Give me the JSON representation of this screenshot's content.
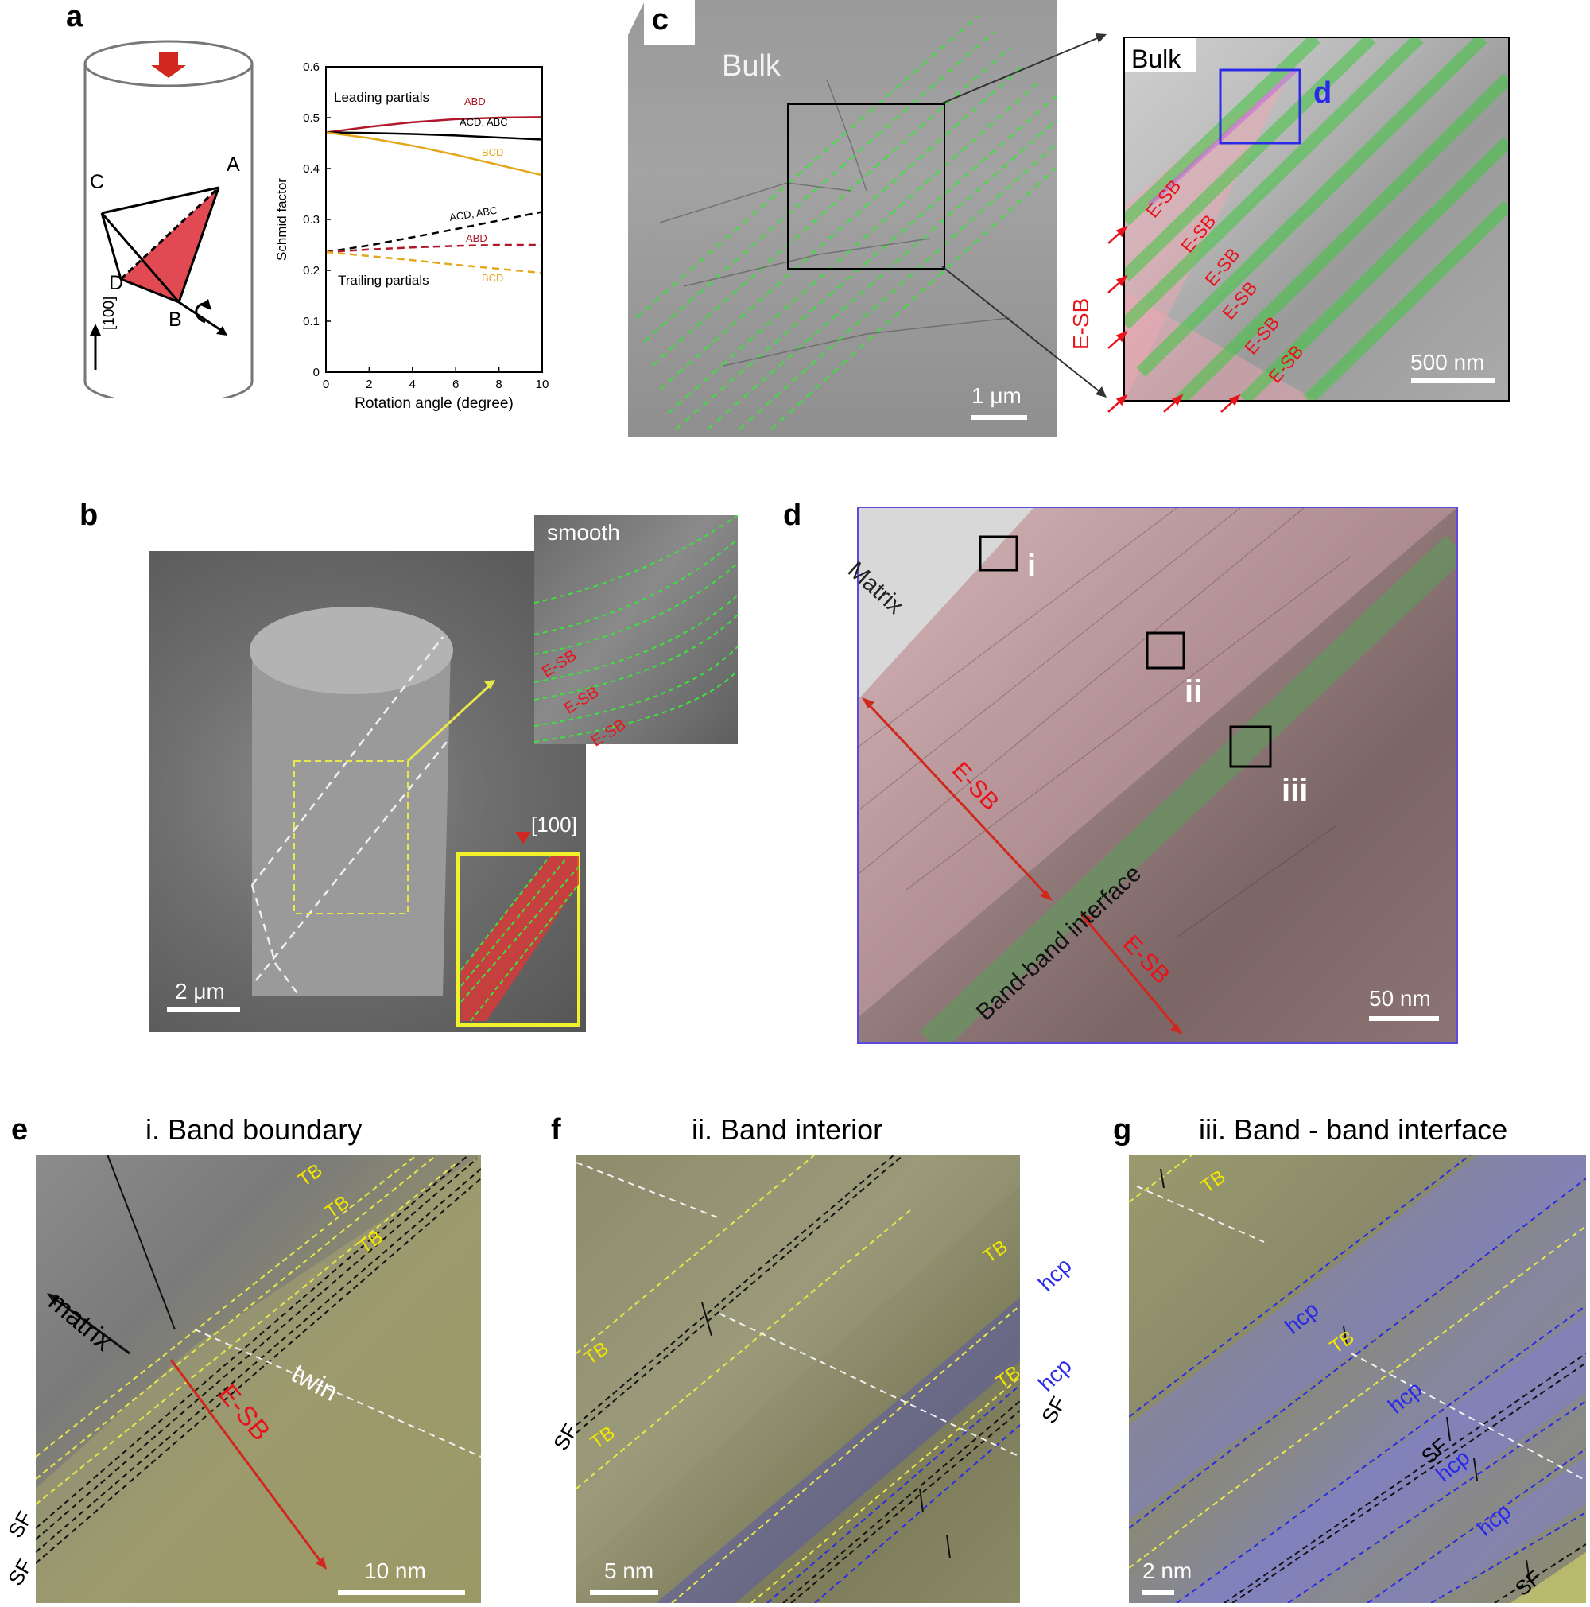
{
  "panels": {
    "a": {
      "letter": "a",
      "cylinder_labels": {
        "A": "A",
        "B": "B",
        "C": "C",
        "D": "D",
        "direction": "[100]"
      },
      "colors": {
        "plane": "#e0404a",
        "arrow": "#d0281e"
      }
    },
    "b": {
      "letter": "b",
      "inset_label": "smooth",
      "esb": [
        "E-SB",
        "E-SB",
        "E-SB"
      ],
      "direction": "[100]",
      "scalebar": "2 μm"
    },
    "c": {
      "letter": "c",
      "bulk_left": "Bulk",
      "bulk_right": "Bulk",
      "box_label": "d",
      "esb_labels": [
        "E-SB",
        "E-SB",
        "E-SB",
        "E-SB",
        "E-SB",
        "E-SB"
      ],
      "esb_vertical": "E-SB",
      "scalebar_left": "1 μm",
      "scalebar_right": "500 nm"
    },
    "d": {
      "letter": "d",
      "matrix": "Matrix",
      "boxes": [
        "i",
        "ii",
        "iii"
      ],
      "esb1": "E-SB",
      "esb2": "E-SB",
      "interface": "Band-band interface",
      "scalebar": "50 nm"
    },
    "e": {
      "letter": "e",
      "title": "i. Band boundary",
      "tb": [
        "TB",
        "TB",
        "TB"
      ],
      "matrix": "matrix",
      "twin": "twin",
      "esb": "E-SB",
      "sf": [
        "SF",
        "SF"
      ],
      "scalebar": "10 nm"
    },
    "f": {
      "letter": "f",
      "title": "ii. Band interior",
      "tb": [
        "TB",
        "TB",
        "TB",
        "TB"
      ],
      "hcp": [
        "hcp",
        "hcp"
      ],
      "sf": [
        "SF",
        "SF"
      ],
      "scalebar": "5 nm"
    },
    "g": {
      "letter": "g",
      "title": "iii. Band - band interface",
      "tb": [
        "TB",
        "TB"
      ],
      "hcp": [
        "hcp",
        "hcp",
        "hcp",
        "hcp"
      ],
      "sf": [
        "SF",
        "SF"
      ],
      "scalebar": "2 nm"
    }
  },
  "chart_data": {
    "type": "line",
    "xlabel": "Rotation angle (degree)",
    "ylabel": "Schmid factor",
    "xlim": [
      0,
      10
    ],
    "ylim": [
      0,
      0.6
    ],
    "xticks": [
      "0",
      "2",
      "4",
      "6",
      "8",
      "10"
    ],
    "yticks": [
      "0",
      "0.1",
      "0.2",
      "0.3",
      "0.4",
      "0.5",
      "0.6"
    ],
    "group_labels": {
      "leading": "Leading partials",
      "trailing": "Trailing partials"
    },
    "series": [
      {
        "name": "ABD",
        "group": "leading",
        "style": "solid",
        "color": "#b0182a",
        "x": [
          0,
          2,
          4,
          6,
          8,
          10
        ],
        "y": [
          0.471,
          0.482,
          0.491,
          0.497,
          0.5,
          0.501
        ]
      },
      {
        "name": "ACD, ABC",
        "group": "leading",
        "style": "solid",
        "color": "#000000",
        "x": [
          0,
          2,
          4,
          6,
          8,
          10
        ],
        "y": [
          0.471,
          0.47,
          0.468,
          0.465,
          0.461,
          0.457
        ]
      },
      {
        "name": "BCD",
        "group": "leading",
        "style": "solid",
        "color": "#e2a71b",
        "x": [
          0,
          2,
          4,
          6,
          8,
          10
        ],
        "y": [
          0.471,
          0.46,
          0.445,
          0.427,
          0.407,
          0.387
        ]
      },
      {
        "name": "ACD, ABC",
        "group": "trailing",
        "style": "dashed",
        "color": "#000000",
        "x": [
          0,
          2,
          4,
          6,
          8,
          10
        ],
        "y": [
          0.236,
          0.249,
          0.265,
          0.281,
          0.298,
          0.315
        ]
      },
      {
        "name": "ABD",
        "group": "trailing",
        "style": "dashed",
        "color": "#b0182a",
        "x": [
          0,
          2,
          4,
          6,
          8,
          10
        ],
        "y": [
          0.236,
          0.241,
          0.245,
          0.248,
          0.25,
          0.25
        ]
      },
      {
        "name": "BCD",
        "group": "trailing",
        "style": "dashed",
        "color": "#e2a71b",
        "x": [
          0,
          2,
          4,
          6,
          8,
          10
        ],
        "y": [
          0.236,
          0.228,
          0.22,
          0.211,
          0.203,
          0.195
        ]
      }
    ]
  }
}
